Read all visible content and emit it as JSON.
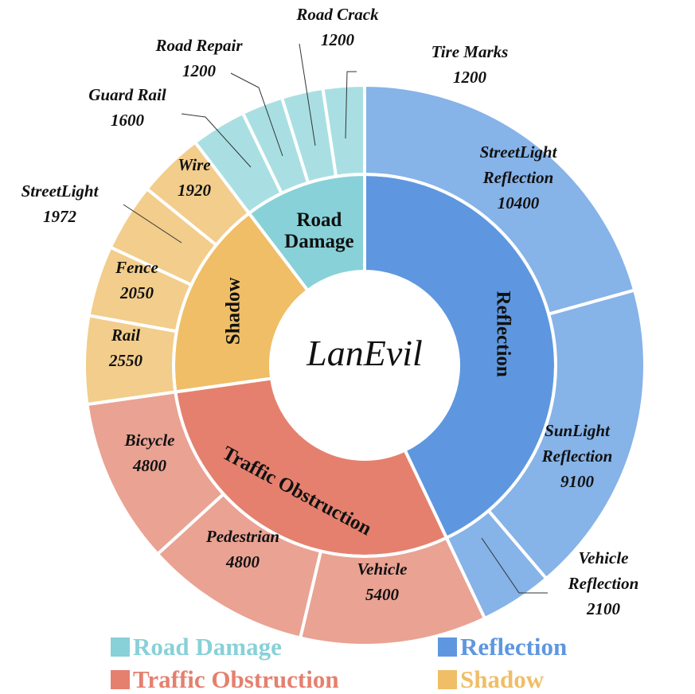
{
  "chart_data": {
    "type": "sunburst",
    "center_label": "LanEvil",
    "categories": [
      {
        "name": "Reflection",
        "color": "#5e97df",
        "child_color": "#86b3e8",
        "children": [
          {
            "name": "StreetLight Reflection",
            "label_lines": [
              "StreetLight",
              "Reflection"
            ],
            "value": 10400
          },
          {
            "name": "SunLight Reflection",
            "label_lines": [
              "SunLight",
              "Reflection"
            ],
            "value": 9100
          },
          {
            "name": "Vehicle Reflection",
            "label_lines": [
              "Vehicle",
              "Reflection"
            ],
            "value": 2100
          }
        ]
      },
      {
        "name": "Traffic Obstruction",
        "color": "#e5806e",
        "child_color": "#eaa293",
        "children": [
          {
            "name": "Vehicle",
            "label_lines": [
              "Vehicle"
            ],
            "value": 5400
          },
          {
            "name": "Pedestrian",
            "label_lines": [
              "Pedestrian"
            ],
            "value": 4800
          },
          {
            "name": "Bicycle",
            "label_lines": [
              "Bicycle"
            ],
            "value": 4800
          }
        ]
      },
      {
        "name": "Shadow",
        "color": "#efbe66",
        "child_color": "#f2cd8b",
        "children": [
          {
            "name": "Rail",
            "label_lines": [
              "Rail"
            ],
            "value": 2550
          },
          {
            "name": "Fence",
            "label_lines": [
              "Fence"
            ],
            "value": 2050
          },
          {
            "name": "StreetLight",
            "label_lines": [
              "StreetLight"
            ],
            "value": 1972
          },
          {
            "name": "Wire",
            "label_lines": [
              "Wire"
            ],
            "value": 1920
          }
        ]
      },
      {
        "name": "Road Damage",
        "label_lines": [
          "Road",
          "Damage"
        ],
        "color": "#88d1d8",
        "child_color": "#a9dfe3",
        "children": [
          {
            "name": "Guard Rail",
            "label_lines": [
              "Guard Rail"
            ],
            "value": 1600
          },
          {
            "name": "Road Repair",
            "label_lines": [
              "Road Repair"
            ],
            "value": 1200
          },
          {
            "name": "Road Crack",
            "label_lines": [
              "Road Crack"
            ],
            "value": 1200
          },
          {
            "name": "Tire Marks",
            "label_lines": [
              "Tire Marks"
            ],
            "value": 1200
          }
        ]
      }
    ],
    "legend": [
      {
        "name": "Road Damage",
        "color": "#88d1d8"
      },
      {
        "name": "Reflection",
        "color": "#5e97df"
      },
      {
        "name": "Traffic Obstruction",
        "color": "#e5806e"
      },
      {
        "name": "Shadow",
        "color": "#efbe66"
      }
    ],
    "legend_placement": "bottom"
  }
}
